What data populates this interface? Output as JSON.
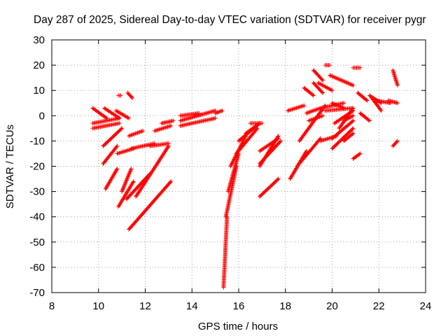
{
  "chart_data": {
    "type": "scatter",
    "title": "Day 287 of 2025, Sidereal Day-to-day VTEC variation (SDTVAR) for receiver pygr",
    "xlabel": "GPS time / hours",
    "ylabel": "SDTVAR / TECUs",
    "xlim": [
      8,
      24
    ],
    "ylim": [
      -70,
      30
    ],
    "x_ticks": [
      "8",
      "10",
      "12",
      "14",
      "16",
      "18",
      "20",
      "22",
      "24"
    ],
    "y_ticks": [
      "30",
      "20",
      "10",
      "0",
      "-10",
      "-20",
      "-30",
      "-40",
      "-50",
      "-60",
      "-70"
    ],
    "grid": true,
    "marker": "+",
    "series_color": "#ff0000",
    "segments": [
      {
        "x": [
          9.75,
          10.35
        ],
        "y": [
          3,
          -1
        ]
      },
      {
        "x": [
          9.75,
          10.9
        ],
        "y": [
          -3,
          -1
        ]
      },
      {
        "x": [
          9.75,
          10.9
        ],
        "y": [
          -5,
          -3
        ]
      },
      {
        "x": [
          10.25,
          10.9
        ],
        "y": [
          3,
          -1
        ]
      },
      {
        "x": [
          10.75,
          11.3
        ],
        "y": [
          2,
          -1
        ]
      },
      {
        "x": [
          10.85,
          10.95
        ],
        "y": [
          8,
          8
        ]
      },
      {
        "x": [
          11.25,
          11.45
        ],
        "y": [
          9,
          7
        ]
      },
      {
        "x": [
          10.2,
          11.0
        ],
        "y": [
          -12,
          -5
        ]
      },
      {
        "x": [
          10.2,
          10.8
        ],
        "y": [
          -19,
          -12
        ]
      },
      {
        "x": [
          10.3,
          10.8
        ],
        "y": [
          -29,
          -21
        ]
      },
      {
        "x": [
          10.8,
          11.5
        ],
        "y": [
          -15,
          -13
        ]
      },
      {
        "x": [
          10.85,
          11.5
        ],
        "y": [
          -36,
          -26
        ]
      },
      {
        "x": [
          11.0,
          11.4
        ],
        "y": [
          -30,
          -21
        ]
      },
      {
        "x": [
          11.3,
          11.9
        ],
        "y": [
          -8,
          -6
        ]
      },
      {
        "x": [
          11.4,
          12.4
        ],
        "y": [
          -13,
          -11
        ]
      },
      {
        "x": [
          11.2,
          12.2
        ],
        "y": [
          -33,
          -23
        ]
      },
      {
        "x": [
          11.6,
          13.0
        ],
        "y": [
          -32,
          -12
        ]
      },
      {
        "x": [
          12.2,
          13.0
        ],
        "y": [
          -12,
          -11
        ]
      },
      {
        "x": [
          12.4,
          13.1
        ],
        "y": [
          -6,
          -4
        ]
      },
      {
        "x": [
          12.7,
          13.2
        ],
        "y": [
          -3,
          -2
        ]
      },
      {
        "x": [
          11.3,
          13.1
        ],
        "y": [
          -45,
          -26
        ]
      },
      {
        "x": [
          13.5,
          15.0
        ],
        "y": [
          -2,
          2
        ]
      },
      {
        "x": [
          13.5,
          15.0
        ],
        "y": [
          -4,
          -1
        ]
      },
      {
        "x": [
          13.5,
          14.3
        ],
        "y": [
          0,
          1
        ]
      },
      {
        "x": [
          15.0,
          15.3
        ],
        "y": [
          1,
          2
        ]
      },
      {
        "x": [
          15.35,
          15.5
        ],
        "y": [
          -68,
          -40
        ]
      },
      {
        "x": [
          15.45,
          15.9
        ],
        "y": [
          -40,
          -20
        ]
      },
      {
        "x": [
          15.55,
          16.0
        ],
        "y": [
          -30,
          -15
        ]
      },
      {
        "x": [
          15.65,
          16.3
        ],
        "y": [
          -20,
          -8
        ]
      },
      {
        "x": [
          15.9,
          16.8
        ],
        "y": [
          -15,
          -5
        ]
      },
      {
        "x": [
          16.0,
          16.9
        ],
        "y": [
          -10,
          -3
        ]
      },
      {
        "x": [
          16.3,
          16.9
        ],
        "y": [
          -7,
          -3
        ]
      },
      {
        "x": [
          16.5,
          17.0
        ],
        "y": [
          -3,
          -3
        ]
      },
      {
        "x": [
          16.9,
          17.7
        ],
        "y": [
          -20,
          -8
        ]
      },
      {
        "x": [
          16.9,
          17.8
        ],
        "y": [
          -19,
          -10
        ]
      },
      {
        "x": [
          16.9,
          17.7
        ],
        "y": [
          -14,
          -9
        ]
      },
      {
        "x": [
          16.9,
          17.7
        ],
        "y": [
          -32,
          -25
        ]
      },
      {
        "x": [
          18.1,
          18.8
        ],
        "y": [
          2,
          4
        ]
      },
      {
        "x": [
          18.2,
          18.9
        ],
        "y": [
          -25,
          -14
        ]
      },
      {
        "x": [
          18.5,
          19.5
        ],
        "y": [
          -20,
          -9
        ]
      },
      {
        "x": [
          18.6,
          19.7
        ],
        "y": [
          -10,
          4
        ]
      },
      {
        "x": [
          18.9,
          19.5
        ],
        "y": [
          1,
          3
        ]
      },
      {
        "x": [
          19.0,
          19.6
        ],
        "y": [
          -2,
          0
        ]
      },
      {
        "x": [
          19.5,
          20.2
        ],
        "y": [
          -10,
          -8
        ]
      },
      {
        "x": [
          19.5,
          20.5
        ],
        "y": [
          3,
          5
        ]
      },
      {
        "x": [
          19.7,
          20.9
        ],
        "y": [
          2,
          3
        ]
      },
      {
        "x": [
          19.2,
          19.6
        ],
        "y": [
          18,
          14
        ]
      },
      {
        "x": [
          19.4,
          20.0
        ],
        "y": [
          13,
          10
        ]
      },
      {
        "x": [
          20.0,
          20.5
        ],
        "y": [
          5,
          3
        ]
      },
      {
        "x": [
          20.3,
          20.9
        ],
        "y": [
          -5,
          3
        ]
      },
      {
        "x": [
          20.5,
          20.9
        ],
        "y": [
          -2,
          0
        ]
      },
      {
        "x": [
          18.8,
          19.2
        ],
        "y": [
          11,
          8
        ]
      },
      {
        "x": [
          19.2,
          19.6
        ],
        "y": [
          13,
          9
        ]
      },
      {
        "x": [
          19.9,
          20.9
        ],
        "y": [
          16,
          12
        ]
      },
      {
        "x": [
          20.0,
          20.9
        ],
        "y": [
          -13,
          -5
        ]
      },
      {
        "x": [
          20.0,
          20.9
        ],
        "y": [
          -9,
          -2
        ]
      },
      {
        "x": [
          20.1,
          20.9
        ],
        "y": [
          -3,
          2
        ]
      },
      {
        "x": [
          20.5,
          20.9
        ],
        "y": [
          -10,
          -7
        ]
      },
      {
        "x": [
          20.9,
          21.2
        ],
        "y": [
          -17,
          -15
        ]
      },
      {
        "x": [
          20.9,
          21.2
        ],
        "y": [
          19,
          19
        ]
      },
      {
        "x": [
          21.1,
          21.5
        ],
        "y": [
          9,
          6
        ]
      },
      {
        "x": [
          21.2,
          21.6
        ],
        "y": [
          1,
          -2
        ]
      },
      {
        "x": [
          21.6,
          22.1
        ],
        "y": [
          8,
          5
        ]
      },
      {
        "x": [
          21.7,
          22.1
        ],
        "y": [
          7,
          2
        ]
      },
      {
        "x": [
          21.9,
          22.5
        ],
        "y": [
          6,
          5
        ]
      },
      {
        "x": [
          22.4,
          22.8
        ],
        "y": [
          6,
          5
        ]
      },
      {
        "x": [
          22.6,
          22.8
        ],
        "y": [
          18,
          12
        ]
      },
      {
        "x": [
          22.6,
          22.8
        ],
        "y": [
          -12,
          -10
        ]
      },
      {
        "x": [
          19.7,
          19.9
        ],
        "y": [
          20,
          20
        ]
      }
    ]
  }
}
